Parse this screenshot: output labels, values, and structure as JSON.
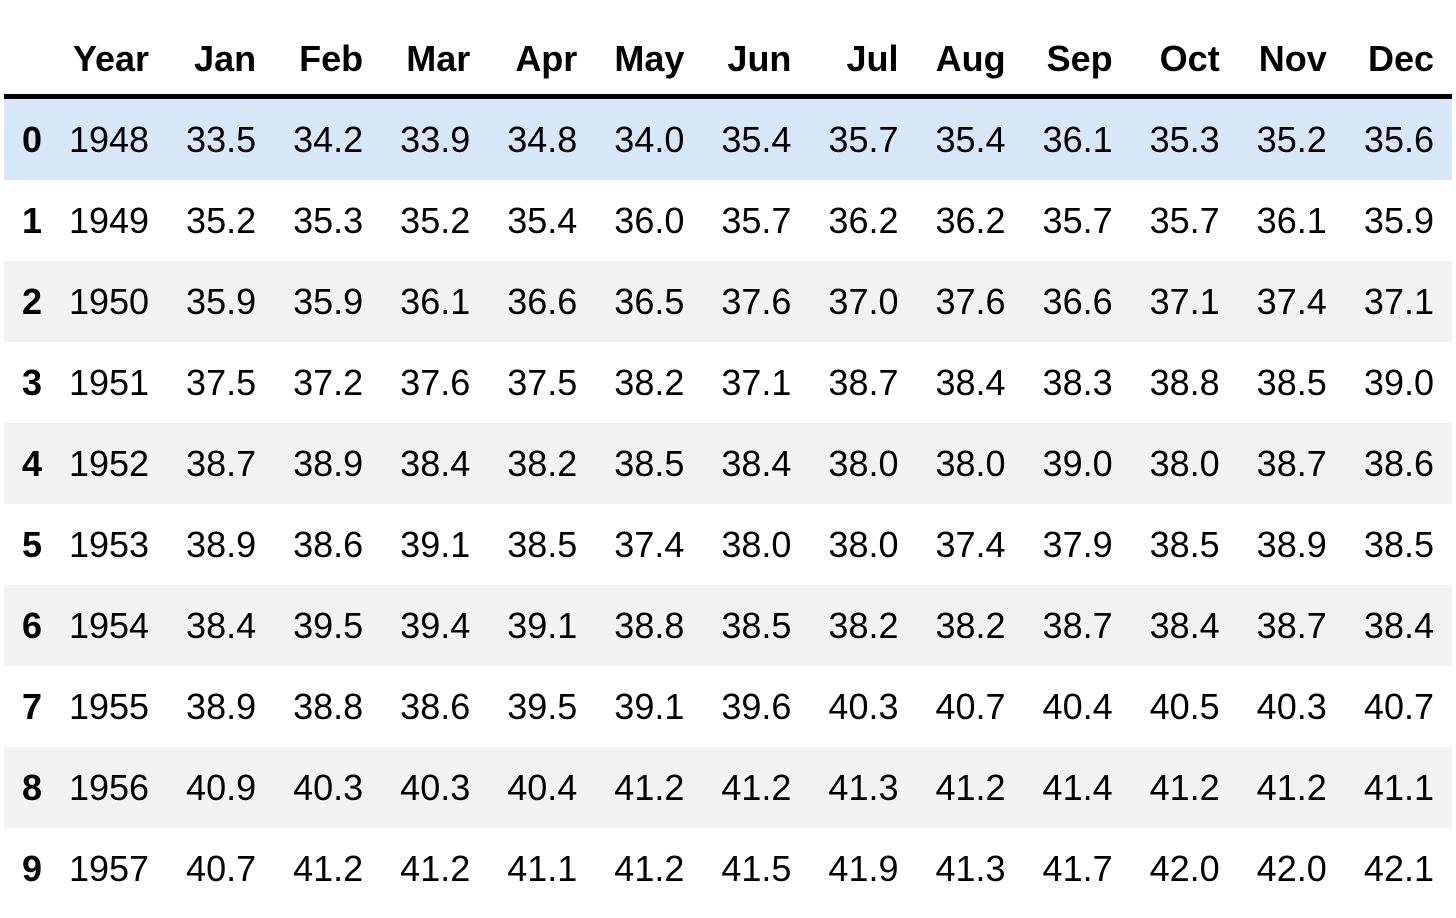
{
  "table": {
    "index_header": "",
    "columns": [
      "Year",
      "Jan",
      "Feb",
      "Mar",
      "Apr",
      "May",
      "Jun",
      "Jul",
      "Aug",
      "Sep",
      "Oct",
      "Nov",
      "Dec"
    ],
    "rows": [
      {
        "index": "0",
        "year": "1948",
        "values": [
          "33.5",
          "34.2",
          "33.9",
          "34.8",
          "34.0",
          "35.4",
          "35.7",
          "35.4",
          "36.1",
          "35.3",
          "35.2",
          "35.6"
        ]
      },
      {
        "index": "1",
        "year": "1949",
        "values": [
          "35.2",
          "35.3",
          "35.2",
          "35.4",
          "36.0",
          "35.7",
          "36.2",
          "36.2",
          "35.7",
          "35.7",
          "36.1",
          "35.9"
        ]
      },
      {
        "index": "2",
        "year": "1950",
        "values": [
          "35.9",
          "35.9",
          "36.1",
          "36.6",
          "36.5",
          "37.6",
          "37.0",
          "37.6",
          "36.6",
          "37.1",
          "37.4",
          "37.1"
        ]
      },
      {
        "index": "3",
        "year": "1951",
        "values": [
          "37.5",
          "37.2",
          "37.6",
          "37.5",
          "38.2",
          "37.1",
          "38.7",
          "38.4",
          "38.3",
          "38.8",
          "38.5",
          "39.0"
        ]
      },
      {
        "index": "4",
        "year": "1952",
        "values": [
          "38.7",
          "38.9",
          "38.4",
          "38.2",
          "38.5",
          "38.4",
          "38.0",
          "38.0",
          "39.0",
          "38.0",
          "38.7",
          "38.6"
        ]
      },
      {
        "index": "5",
        "year": "1953",
        "values": [
          "38.9",
          "38.6",
          "39.1",
          "38.5",
          "37.4",
          "38.0",
          "38.0",
          "37.4",
          "37.9",
          "38.5",
          "38.9",
          "38.5"
        ]
      },
      {
        "index": "6",
        "year": "1954",
        "values": [
          "38.4",
          "39.5",
          "39.4",
          "39.1",
          "38.8",
          "38.5",
          "38.2",
          "38.2",
          "38.7",
          "38.4",
          "38.7",
          "38.4"
        ]
      },
      {
        "index": "7",
        "year": "1955",
        "values": [
          "38.9",
          "38.8",
          "38.6",
          "39.5",
          "39.1",
          "39.6",
          "40.3",
          "40.7",
          "40.4",
          "40.5",
          "40.3",
          "40.7"
        ]
      },
      {
        "index": "8",
        "year": "1956",
        "values": [
          "40.9",
          "40.3",
          "40.3",
          "40.4",
          "41.2",
          "41.2",
          "41.3",
          "41.2",
          "41.4",
          "41.2",
          "41.2",
          "41.1"
        ]
      },
      {
        "index": "9",
        "year": "1957",
        "values": [
          "40.7",
          "41.2",
          "41.2",
          "41.1",
          "41.2",
          "41.5",
          "41.9",
          "41.3",
          "41.7",
          "42.0",
          "42.0",
          "42.1"
        ]
      }
    ],
    "highlighted_row_index": "0"
  },
  "colors": {
    "highlight_row_bg": "#d8e7f7",
    "stripe_row_bg": "#f2f2f2",
    "header_border": "#000000",
    "text": "#000000"
  }
}
